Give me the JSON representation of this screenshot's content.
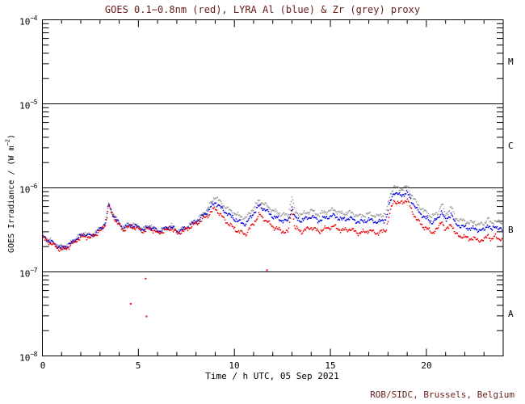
{
  "title": {
    "text": "GOES 0.1−0.8nm (red), LYRA Al (blue) & Zr (grey) proxy",
    "color": "#6a1c1c"
  },
  "footer": {
    "text": "ROB/SIDC, Brussels, Belgium",
    "color": "#6a1c1c"
  },
  "axes": {
    "x_label": "Time / h UTC, 05 Sep 2021",
    "y_label_prefix": "GOES Irradiance / (W m",
    "y_label_exp": "−2",
    "y_label_suffix": ")",
    "y_tick_base": "10",
    "y_tick_exponents": [
      "−4",
      "−5",
      "−6",
      "−7",
      "−8"
    ],
    "x_tick_labels": [
      "0",
      "5",
      "10",
      "15",
      "20"
    ]
  },
  "chart_data": {
    "type": "scatter",
    "title": "GOES 0.1−0.8nm (red), LYRA Al (blue) & Zr (grey) proxy",
    "xlabel": "Time / h UTC, 05 Sep 2021",
    "ylabel": "GOES Irradiance / (W m^-2)",
    "x_range_hours": [
      0,
      24
    ],
    "y_log10_range": [
      -8,
      -4
    ],
    "x_major_ticks": [
      0,
      5,
      10,
      15,
      20
    ],
    "y_decade_gridlines_log10": [
      -5,
      -6,
      -7
    ],
    "flare_classes": [
      "M",
      "C",
      "B",
      "A"
    ],
    "legend_position": "in-title",
    "grid": "horizontal decade lines only",
    "series": [
      {
        "name": "GOES 0.1-0.8nm",
        "color": "#e80000",
        "points_hour_log10flux": [
          [
            0,
            -6.6
          ],
          [
            0.3,
            -6.64
          ],
          [
            0.7,
            -6.7
          ],
          [
            1.0,
            -6.74
          ],
          [
            1.4,
            -6.7
          ],
          [
            1.8,
            -6.62
          ],
          [
            2.2,
            -6.57
          ],
          [
            2.5,
            -6.6
          ],
          [
            2.8,
            -6.55
          ],
          [
            3.1,
            -6.5
          ],
          [
            3.3,
            -6.42
          ],
          [
            3.45,
            -6.22
          ],
          [
            3.6,
            -6.3
          ],
          [
            3.9,
            -6.42
          ],
          [
            4.2,
            -6.5
          ],
          [
            4.6,
            -6.46
          ],
          [
            5.0,
            -6.49
          ],
          [
            5.3,
            -6.52
          ],
          [
            5.6,
            -6.48
          ],
          [
            6.0,
            -6.54
          ],
          [
            6.4,
            -6.51
          ],
          [
            6.7,
            -6.48
          ],
          [
            7.0,
            -6.54
          ],
          [
            7.4,
            -6.51
          ],
          [
            7.8,
            -6.45
          ],
          [
            8.2,
            -6.4
          ],
          [
            8.6,
            -6.33
          ],
          [
            9.0,
            -6.24
          ],
          [
            9.3,
            -6.33
          ],
          [
            9.7,
            -6.43
          ],
          [
            10.2,
            -6.52
          ],
          [
            10.6,
            -6.55
          ],
          [
            11.0,
            -6.42
          ],
          [
            11.3,
            -6.32
          ],
          [
            11.6,
            -6.38
          ],
          [
            12.0,
            -6.46
          ],
          [
            12.4,
            -6.51
          ],
          [
            12.8,
            -6.53
          ],
          [
            13.0,
            -6.24
          ],
          [
            13.15,
            -6.48
          ],
          [
            13.5,
            -6.52
          ],
          [
            14.0,
            -6.47
          ],
          [
            14.4,
            -6.52
          ],
          [
            14.8,
            -6.48
          ],
          [
            15.2,
            -6.46
          ],
          [
            15.6,
            -6.51
          ],
          [
            16.0,
            -6.49
          ],
          [
            16.5,
            -6.54
          ],
          [
            17.0,
            -6.51
          ],
          [
            17.5,
            -6.54
          ],
          [
            17.9,
            -6.5
          ],
          [
            18.1,
            -6.3
          ],
          [
            18.3,
            -6.15
          ],
          [
            18.6,
            -6.19
          ],
          [
            19.0,
            -6.14
          ],
          [
            19.2,
            -6.25
          ],
          [
            19.5,
            -6.38
          ],
          [
            19.9,
            -6.47
          ],
          [
            20.3,
            -6.53
          ],
          [
            20.6,
            -6.49
          ],
          [
            20.8,
            -6.38
          ],
          [
            21.0,
            -6.52
          ],
          [
            21.3,
            -6.42
          ],
          [
            21.5,
            -6.55
          ],
          [
            22.0,
            -6.59
          ],
          [
            22.5,
            -6.61
          ],
          [
            23.0,
            -6.63
          ],
          [
            23.2,
            -6.55
          ],
          [
            23.4,
            -6.63
          ],
          [
            23.6,
            -6.57
          ],
          [
            24,
            -6.64
          ]
        ]
      },
      {
        "name": "LYRA Al proxy",
        "color": "#0000dd",
        "points_hour_log10flux": [
          [
            0,
            -6.58
          ],
          [
            0.3,
            -6.62
          ],
          [
            0.7,
            -6.68
          ],
          [
            1.0,
            -6.72
          ],
          [
            1.4,
            -6.68
          ],
          [
            1.8,
            -6.6
          ],
          [
            2.2,
            -6.55
          ],
          [
            2.5,
            -6.58
          ],
          [
            2.8,
            -6.53
          ],
          [
            3.1,
            -6.48
          ],
          [
            3.3,
            -6.4
          ],
          [
            3.45,
            -6.2
          ],
          [
            3.6,
            -6.28
          ],
          [
            3.9,
            -6.4
          ],
          [
            4.2,
            -6.48
          ],
          [
            4.6,
            -6.44
          ],
          [
            5.0,
            -6.47
          ],
          [
            5.3,
            -6.5
          ],
          [
            5.6,
            -6.46
          ],
          [
            6.0,
            -6.52
          ],
          [
            6.4,
            -6.49
          ],
          [
            6.7,
            -6.46
          ],
          [
            7.0,
            -6.52
          ],
          [
            7.4,
            -6.49
          ],
          [
            7.8,
            -6.43
          ],
          [
            8.2,
            -6.37
          ],
          [
            8.6,
            -6.28
          ],
          [
            9.0,
            -6.17
          ],
          [
            9.3,
            -6.24
          ],
          [
            9.7,
            -6.32
          ],
          [
            10.2,
            -6.4
          ],
          [
            10.6,
            -6.43
          ],
          [
            11.0,
            -6.3
          ],
          [
            11.3,
            -6.21
          ],
          [
            11.6,
            -6.26
          ],
          [
            12.0,
            -6.34
          ],
          [
            12.4,
            -6.38
          ],
          [
            12.8,
            -6.4
          ],
          [
            13.0,
            -6.22
          ],
          [
            13.15,
            -6.36
          ],
          [
            13.5,
            -6.39
          ],
          [
            14.0,
            -6.34
          ],
          [
            14.4,
            -6.39
          ],
          [
            14.8,
            -6.35
          ],
          [
            15.2,
            -6.33
          ],
          [
            15.6,
            -6.38
          ],
          [
            16.0,
            -6.36
          ],
          [
            16.5,
            -6.41
          ],
          [
            17.0,
            -6.38
          ],
          [
            17.5,
            -6.41
          ],
          [
            17.9,
            -6.37
          ],
          [
            18.1,
            -6.18
          ],
          [
            18.3,
            -6.05
          ],
          [
            18.6,
            -6.09
          ],
          [
            19.0,
            -6.06
          ],
          [
            19.2,
            -6.14
          ],
          [
            19.5,
            -6.26
          ],
          [
            19.9,
            -6.35
          ],
          [
            20.3,
            -6.41
          ],
          [
            20.6,
            -6.37
          ],
          [
            20.8,
            -6.27
          ],
          [
            21.0,
            -6.4
          ],
          [
            21.3,
            -6.3
          ],
          [
            21.5,
            -6.43
          ],
          [
            22.0,
            -6.47
          ],
          [
            22.5,
            -6.49
          ],
          [
            23.0,
            -6.51
          ],
          [
            23.2,
            -6.43
          ],
          [
            23.4,
            -6.51
          ],
          [
            23.6,
            -6.45
          ],
          [
            24,
            -6.52
          ]
        ]
      },
      {
        "name": "LYRA Zr proxy",
        "color": "#999999",
        "points_hour_log10flux": [
          [
            0,
            -6.57
          ],
          [
            0.3,
            -6.61
          ],
          [
            0.7,
            -6.67
          ],
          [
            1.0,
            -6.71
          ],
          [
            1.4,
            -6.67
          ],
          [
            1.8,
            -6.59
          ],
          [
            2.2,
            -6.54
          ],
          [
            2.5,
            -6.57
          ],
          [
            2.8,
            -6.52
          ],
          [
            3.1,
            -6.47
          ],
          [
            3.3,
            -6.39
          ],
          [
            3.45,
            -6.19
          ],
          [
            3.6,
            -6.27
          ],
          [
            3.9,
            -6.39
          ],
          [
            4.2,
            -6.47
          ],
          [
            4.6,
            -6.43
          ],
          [
            5.0,
            -6.46
          ],
          [
            5.3,
            -6.49
          ],
          [
            5.6,
            -6.45
          ],
          [
            6.0,
            -6.51
          ],
          [
            6.4,
            -6.48
          ],
          [
            6.7,
            -6.45
          ],
          [
            7.0,
            -6.51
          ],
          [
            7.4,
            -6.48
          ],
          [
            7.8,
            -6.42
          ],
          [
            8.2,
            -6.35
          ],
          [
            8.6,
            -6.25
          ],
          [
            9.0,
            -6.1
          ],
          [
            9.3,
            -6.18
          ],
          [
            9.7,
            -6.26
          ],
          [
            10.2,
            -6.33
          ],
          [
            10.6,
            -6.36
          ],
          [
            11.0,
            -6.24
          ],
          [
            11.3,
            -6.15
          ],
          [
            11.6,
            -6.2
          ],
          [
            12.0,
            -6.27
          ],
          [
            12.4,
            -6.31
          ],
          [
            12.8,
            -6.33
          ],
          [
            13.0,
            -6.1
          ],
          [
            13.15,
            -6.29
          ],
          [
            13.5,
            -6.32
          ],
          [
            14.0,
            -6.27
          ],
          [
            14.4,
            -6.32
          ],
          [
            14.8,
            -6.28
          ],
          [
            15.2,
            -6.26
          ],
          [
            15.6,
            -6.31
          ],
          [
            16.0,
            -6.29
          ],
          [
            16.5,
            -6.34
          ],
          [
            17.0,
            -6.31
          ],
          [
            17.5,
            -6.34
          ],
          [
            17.9,
            -6.3
          ],
          [
            18.1,
            -6.1
          ],
          [
            18.3,
            -5.98
          ],
          [
            18.6,
            -6.02
          ],
          [
            19.0,
            -5.99
          ],
          [
            19.2,
            -6.07
          ],
          [
            19.5,
            -6.19
          ],
          [
            19.9,
            -6.28
          ],
          [
            20.3,
            -6.34
          ],
          [
            20.6,
            -6.3
          ],
          [
            20.8,
            -6.18
          ],
          [
            21.0,
            -6.33
          ],
          [
            21.3,
            -6.22
          ],
          [
            21.5,
            -6.36
          ],
          [
            22.0,
            -6.4
          ],
          [
            22.5,
            -6.42
          ],
          [
            23.0,
            -6.44
          ],
          [
            23.2,
            -6.35
          ],
          [
            23.4,
            -6.44
          ],
          [
            23.6,
            -6.38
          ],
          [
            24,
            -6.45
          ]
        ]
      }
    ],
    "outliers": {
      "series": "GOES 0.1-0.8nm",
      "color": "#e80000",
      "points_hour_log10flux": [
        [
          4.6,
          -7.38
        ],
        [
          5.38,
          -7.08
        ],
        [
          5.42,
          -7.53
        ],
        [
          11.7,
          -6.98
        ]
      ]
    }
  }
}
